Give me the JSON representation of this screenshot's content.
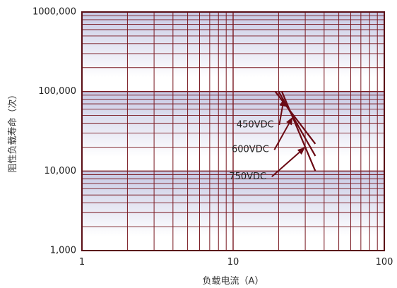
{
  "chart_data": {
    "type": "line",
    "xscale": "log",
    "yscale": "log",
    "xlim": [
      1,
      100
    ],
    "ylim": [
      1000,
      1000000
    ],
    "x_ticks": [
      1,
      10,
      100
    ],
    "x_tick_labels": [
      "1",
      "10",
      "100"
    ],
    "y_ticks": [
      1000,
      10000,
      100000,
      1000000
    ],
    "y_tick_labels": [
      "1,000",
      "10,000",
      "100,000",
      "1000,000"
    ],
    "xlabel": "负载电流（A）",
    "ylabel": "阻性负载寿命（次）",
    "grid": true,
    "series": [
      {
        "name": "450VDC",
        "x": [
          19,
          35
        ],
        "y": [
          100000,
          22000
        ]
      },
      {
        "name": "600VDC",
        "x": [
          20,
          35
        ],
        "y": [
          100000,
          15500
        ]
      },
      {
        "name": "750VDC",
        "x": [
          21,
          35
        ],
        "y": [
          100000,
          10000
        ]
      }
    ],
    "annotations": [
      {
        "text": "450VDC",
        "series": "450VDC",
        "text_at": [
          14,
          38000
        ],
        "arrow_to": [
          21.7,
          82000
        ]
      },
      {
        "text": "600VDC",
        "series": "600VDC",
        "text_at": [
          13,
          18500
        ],
        "arrow_to": [
          24.8,
          48000
        ]
      },
      {
        "text": "750VDC",
        "series": "750VDC",
        "text_at": [
          12.5,
          8500
        ],
        "arrow_to": [
          30,
          20000
        ]
      }
    ],
    "colors": {
      "line": "#6b0a14",
      "grid": "#7a1a22",
      "band": "#d4d6ea",
      "frame": "#5a0e16"
    }
  }
}
